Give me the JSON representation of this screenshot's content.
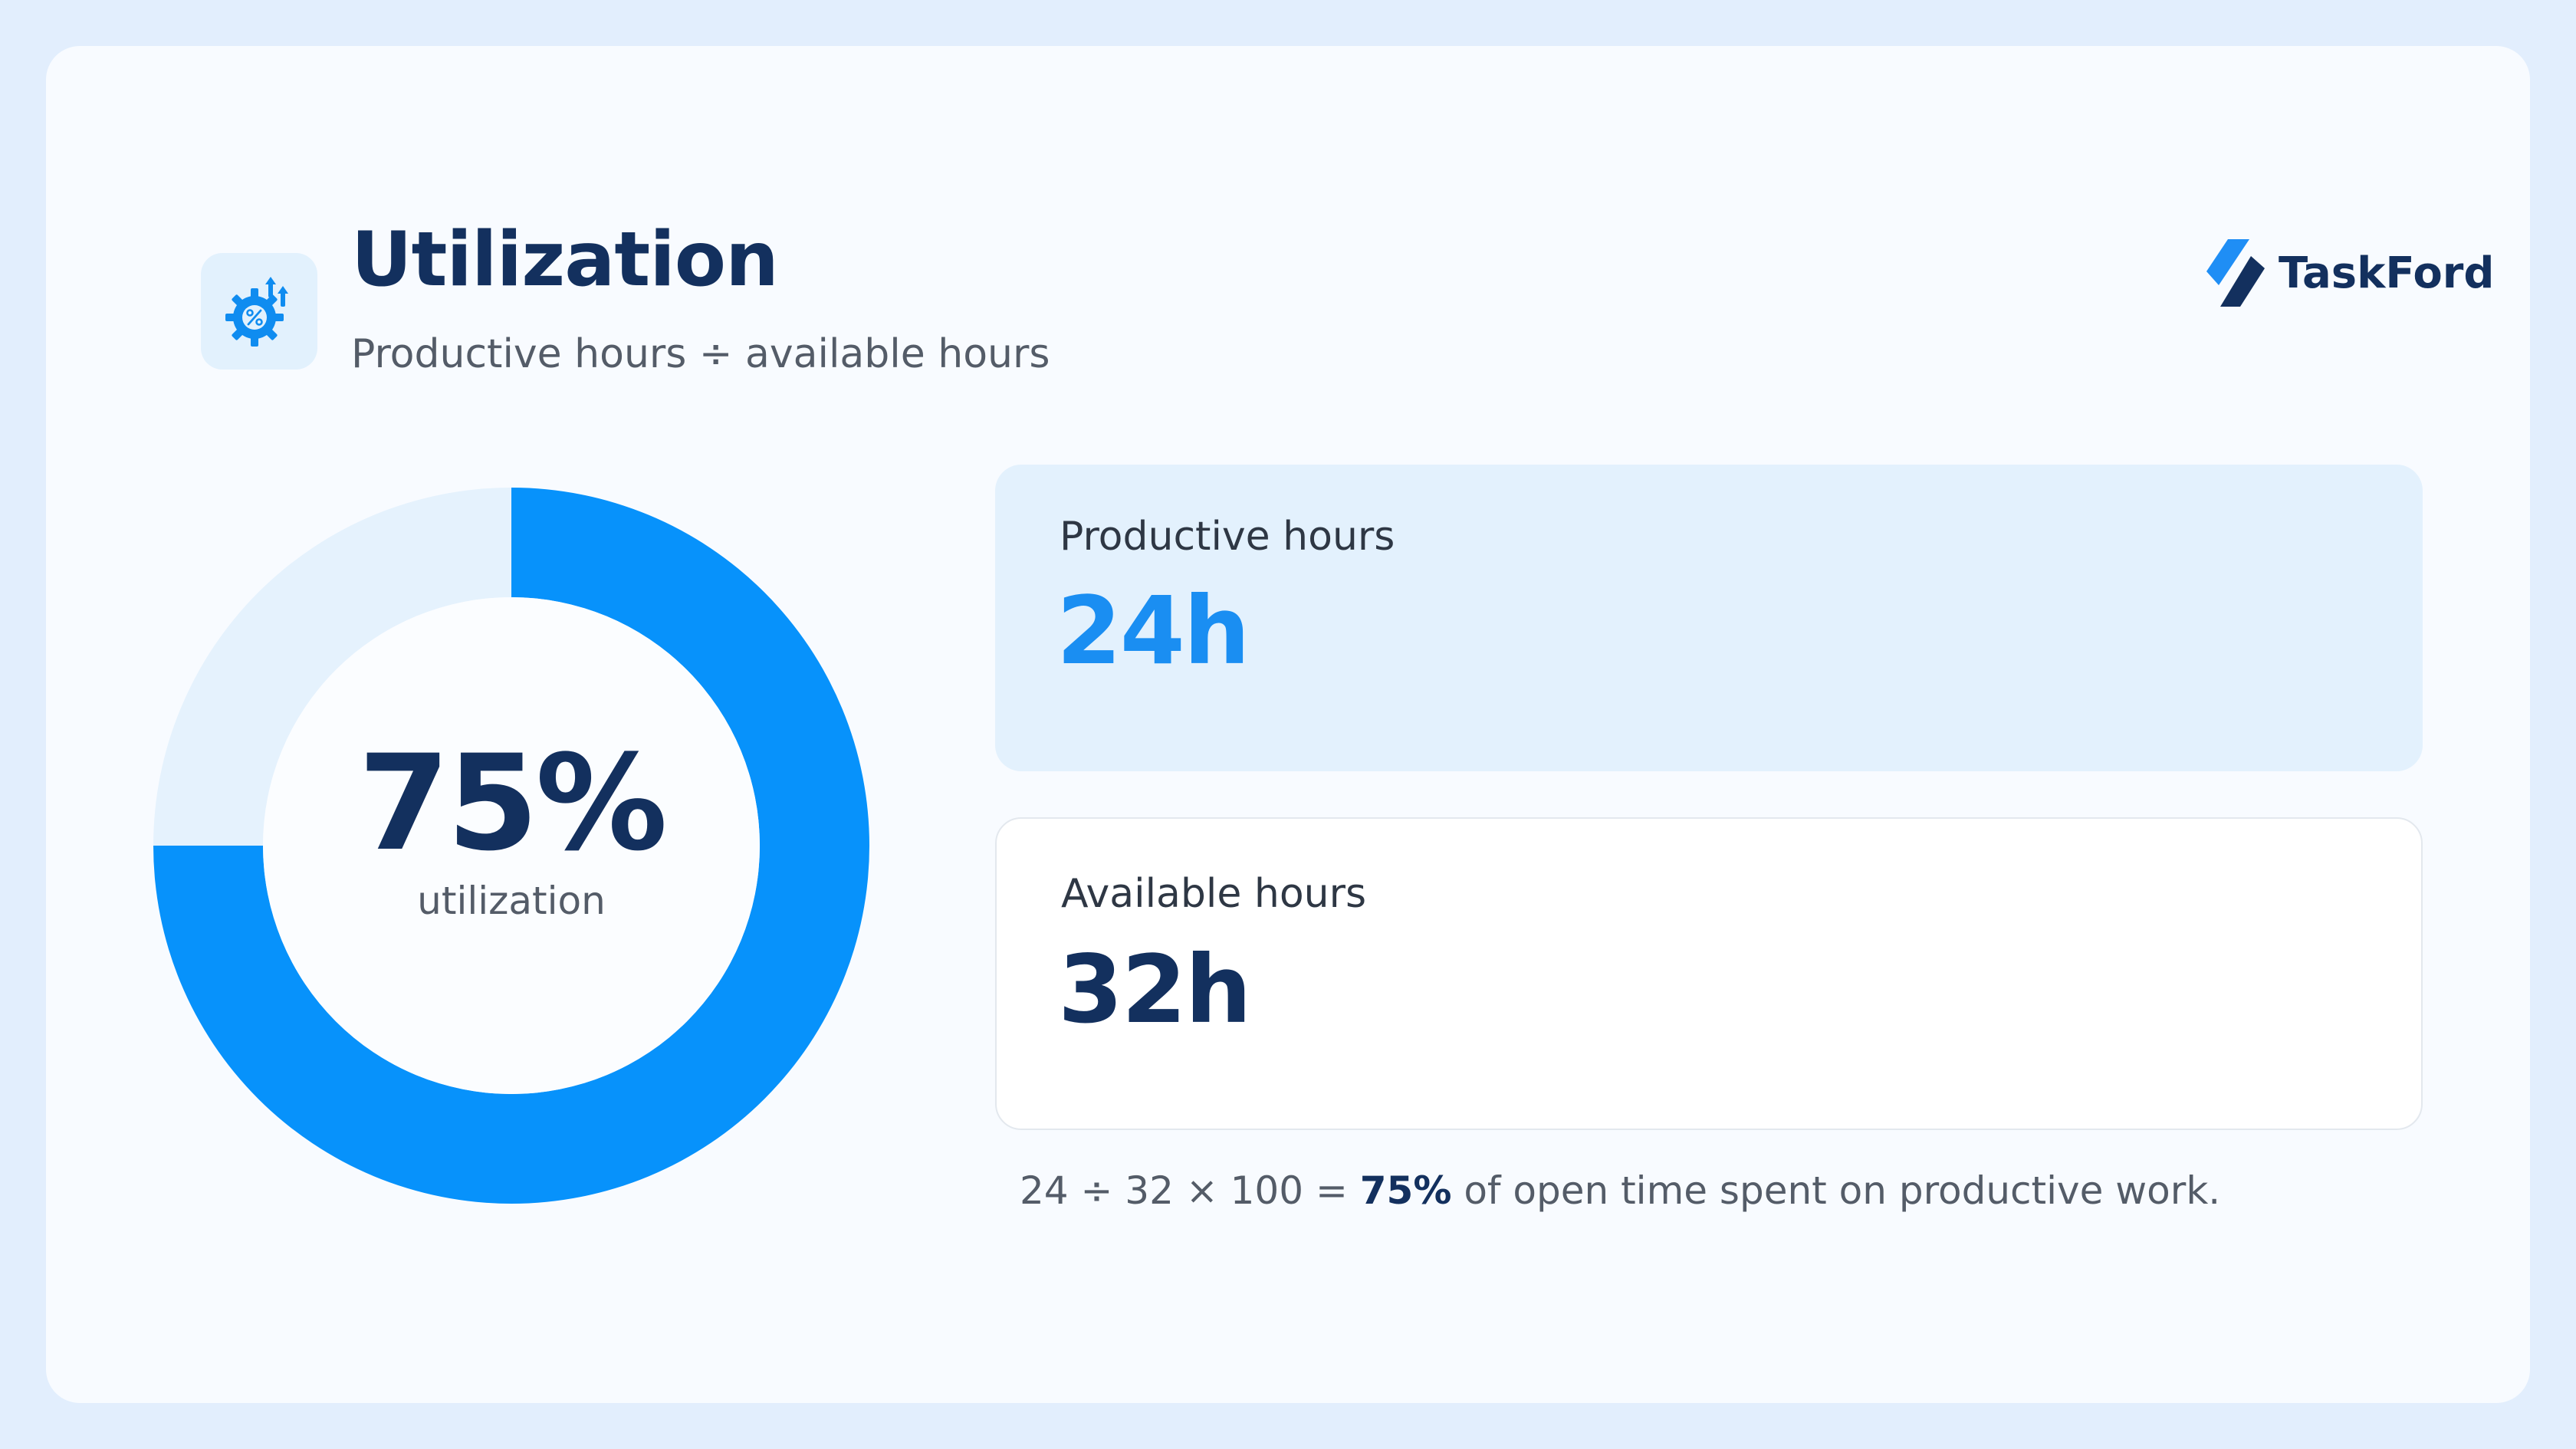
{
  "header": {
    "title": "Utilization",
    "subtitle": "Productive hours ÷ available hours",
    "icon": "gear-percent-icon"
  },
  "brand": {
    "name": "TaskFord",
    "icon": "taskford-logo-icon"
  },
  "chart_data": {
    "type": "pie",
    "variant": "donut",
    "values": [
      75,
      25
    ],
    "center_value": "75%",
    "center_label": "utilization",
    "colors": [
      "#0792fb",
      "#e5f2fd"
    ]
  },
  "metrics": {
    "productive": {
      "label": "Productive hours",
      "value": "24h"
    },
    "available": {
      "label": "Available hours",
      "value": "32h"
    }
  },
  "formula": {
    "prefix": "24 ÷ 32 × 100 = ",
    "result": "75%",
    "suffix": " of open time spent on productive work."
  },
  "colors": {
    "accent": "#1a8ef2",
    "navy": "#13305e",
    "page_bg": "#e2eefd",
    "card_bg": "#f8fbff"
  }
}
